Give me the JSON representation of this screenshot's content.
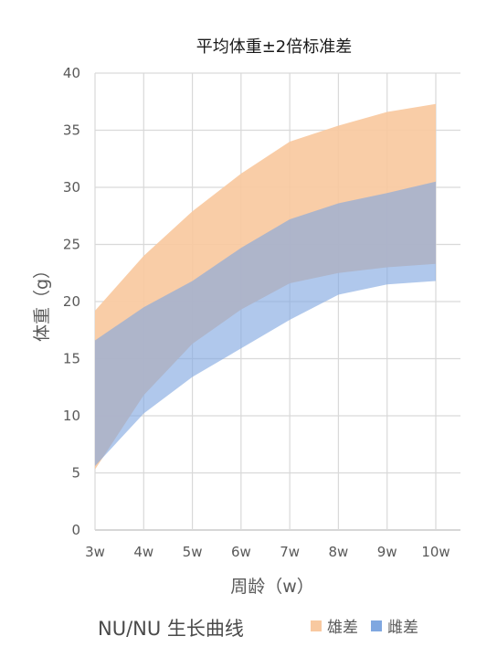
{
  "chart_data": {
    "type": "area",
    "title": "平均体重±2倍标准差",
    "xlabel": "周龄（w）",
    "ylabel": "体重（g）",
    "categories": [
      "3w",
      "4w",
      "5w",
      "6w",
      "7w",
      "8w",
      "9w",
      "10w"
    ],
    "yticks": [
      "0",
      "5",
      "10",
      "15",
      "20",
      "25",
      "30",
      "35",
      "40"
    ],
    "ylim": [
      0,
      40
    ],
    "grid": true,
    "legend_position": "bottom-right",
    "series": [
      {
        "name": "雄差",
        "color": "#F8C9A0",
        "lower": [
          5.3,
          11.8,
          16.3,
          19.3,
          21.6,
          22.5,
          23.0,
          23.3
        ],
        "upper": [
          19.2,
          24.0,
          27.9,
          31.2,
          34.0,
          35.4,
          36.6,
          37.3
        ]
      },
      {
        "name": "雌差",
        "color": "#7FA7E0",
        "lower": [
          5.6,
          10.2,
          13.4,
          15.9,
          18.4,
          20.6,
          21.5,
          21.8
        ],
        "upper": [
          16.6,
          19.5,
          21.8,
          24.7,
          27.2,
          28.6,
          29.5,
          30.5
        ]
      }
    ]
  },
  "footer": {
    "title": "NU/NU 生长曲线"
  }
}
